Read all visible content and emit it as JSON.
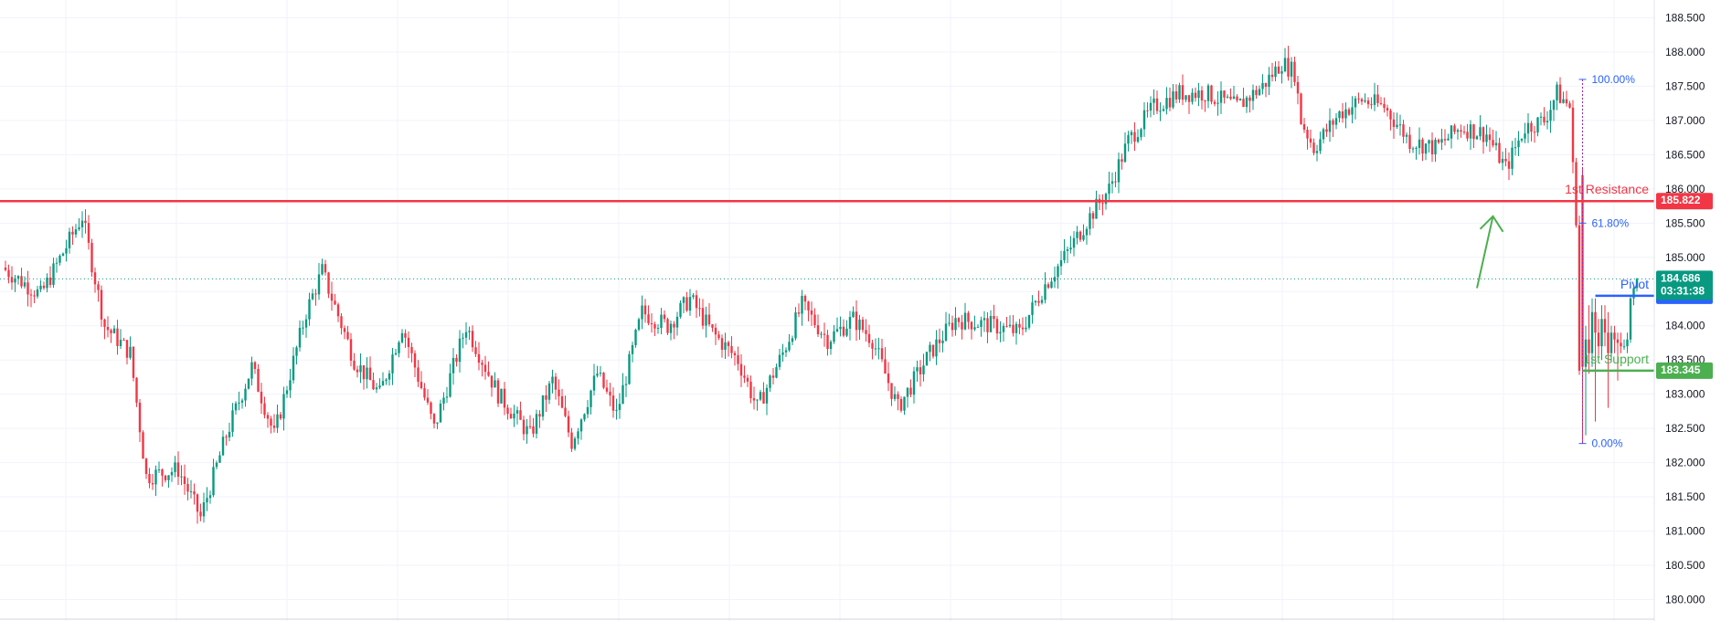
{
  "chart_data": {
    "type": "candlestick",
    "y_axis": {
      "ylim": [
        179.9,
        188.6
      ],
      "ticks": [
        "188.500",
        "188.000",
        "187.500",
        "187.000",
        "186.500",
        "186.000",
        "185.500",
        "185.000",
        "184.500",
        "184.000",
        "183.500",
        "183.000",
        "182.500",
        "182.000",
        "181.500",
        "181.000",
        "180.500",
        "180.000"
      ],
      "position": "right"
    },
    "grid": true,
    "levels": [
      {
        "name": "1st Resistance",
        "value": 185.822,
        "badge": "185.822",
        "color": "#f23645"
      },
      {
        "name": "Pivot",
        "value": 184.439,
        "badge": "184.439",
        "color": "#2962ff"
      },
      {
        "name": "1st Support",
        "value": 183.345,
        "badge": "183.345",
        "color": "#4caf50"
      }
    ],
    "last_price": {
      "value": 184.686,
      "badge": "184.686",
      "countdown": "03:31:38",
      "color": "#089981"
    },
    "fibonacci": [
      {
        "label": "100.00%",
        "value": 187.6
      },
      {
        "label": "61.80%",
        "value": 185.5
      },
      {
        "label": "0.00%",
        "value": 182.28
      }
    ],
    "path_points": [
      [
        0,
        184.85
      ],
      [
        12,
        184.45
      ],
      [
        25,
        185.6
      ],
      [
        32,
        184.0
      ],
      [
        40,
        183.6
      ],
      [
        45,
        181.8
      ],
      [
        55,
        181.9
      ],
      [
        62,
        181.2
      ],
      [
        70,
        182.4
      ],
      [
        78,
        183.4
      ],
      [
        85,
        182.4
      ],
      [
        95,
        184.2
      ],
      [
        100,
        184.8
      ],
      [
        110,
        183.5
      ],
      [
        118,
        183.0
      ],
      [
        125,
        184.0
      ],
      [
        135,
        182.5
      ],
      [
        145,
        184.0
      ],
      [
        155,
        183.0
      ],
      [
        165,
        182.4
      ],
      [
        172,
        183.2
      ],
      [
        178,
        182.3
      ],
      [
        186,
        183.3
      ],
      [
        192,
        182.7
      ],
      [
        200,
        184.2
      ],
      [
        208,
        184.0
      ],
      [
        215,
        184.4
      ],
      [
        222,
        183.9
      ],
      [
        230,
        183.5
      ],
      [
        236,
        182.8
      ],
      [
        244,
        183.6
      ],
      [
        250,
        184.3
      ],
      [
        258,
        183.8
      ],
      [
        266,
        184.1
      ],
      [
        272,
        183.8
      ],
      [
        280,
        182.8
      ],
      [
        290,
        183.6
      ],
      [
        298,
        184.1
      ],
      [
        310,
        184.0
      ],
      [
        318,
        183.9
      ],
      [
        326,
        184.6
      ],
      [
        332,
        185.0
      ],
      [
        340,
        185.6
      ],
      [
        346,
        186.0
      ],
      [
        352,
        186.7
      ],
      [
        360,
        187.2
      ],
      [
        368,
        187.4
      ],
      [
        376,
        187.4
      ],
      [
        386,
        187.2
      ],
      [
        394,
        187.5
      ],
      [
        400,
        187.85
      ],
      [
        404,
        187.7
      ],
      [
        406,
        187.0
      ],
      [
        410,
        186.6
      ],
      [
        418,
        187.1
      ],
      [
        425,
        187.3
      ],
      [
        432,
        187.2
      ],
      [
        440,
        186.7
      ],
      [
        448,
        186.6
      ],
      [
        456,
        186.9
      ],
      [
        464,
        186.8
      ],
      [
        470,
        186.3
      ],
      [
        476,
        186.9
      ],
      [
        482,
        187.0
      ],
      [
        486,
        187.4
      ],
      [
        490,
        187.2
      ],
      [
        491,
        186.3
      ],
      [
        492,
        185.6
      ],
      [
        493,
        183.35
      ],
      [
        496,
        183.9
      ],
      [
        500,
        184.4
      ],
      [
        505,
        183.5
      ],
      [
        510,
        184.0
      ],
      [
        515,
        183.7
      ],
      [
        519,
        183.75
      ],
      [
        523,
        184.2
      ],
      [
        526,
        184.6
      ],
      [
        528,
        184.7
      ]
    ],
    "candles": [
      {
        "i": 493,
        "o": 186.2,
        "h": 186.3,
        "l": 182.28,
        "c": 183.4
      },
      {
        "i": 494,
        "o": 183.4,
        "h": 184.0,
        "l": 182.4,
        "c": 183.8
      },
      {
        "i": 495,
        "o": 183.8,
        "h": 184.3,
        "l": 183.3,
        "c": 183.6
      },
      {
        "i": 496,
        "o": 183.6,
        "h": 184.4,
        "l": 183.4,
        "c": 184.2
      },
      {
        "i": 497,
        "o": 184.2,
        "h": 184.4,
        "l": 182.6,
        "c": 183.9
      },
      {
        "i": 498,
        "o": 183.9,
        "h": 184.1,
        "l": 183.5,
        "c": 183.7
      },
      {
        "i": 499,
        "o": 183.7,
        "h": 184.3,
        "l": 183.5,
        "c": 184.1
      },
      {
        "i": 500,
        "o": 184.1,
        "h": 184.3,
        "l": 183.7,
        "c": 183.9
      },
      {
        "i": 501,
        "o": 183.9,
        "h": 184.2,
        "l": 182.8,
        "c": 183.6
      },
      {
        "i": 502,
        "o": 183.6,
        "h": 184.0,
        "l": 183.5,
        "c": 183.9
      },
      {
        "i": 503,
        "o": 183.9,
        "h": 184.0,
        "l": 183.6,
        "c": 183.8
      },
      {
        "i": 504,
        "o": 183.8,
        "h": 183.9,
        "l": 183.2,
        "c": 183.75
      },
      {
        "i": 505,
        "o": 183.75,
        "h": 183.9,
        "l": 183.6,
        "c": 183.7
      },
      {
        "i": 506,
        "o": 183.7,
        "h": 183.8,
        "l": 183.65,
        "c": 183.7
      },
      {
        "i": 507,
        "o": 183.7,
        "h": 183.9,
        "l": 183.6,
        "c": 183.8
      },
      {
        "i": 508,
        "o": 183.8,
        "h": 184.45,
        "l": 183.75,
        "c": 184.4
      },
      {
        "i": 509,
        "o": 184.4,
        "h": 184.6,
        "l": 184.3,
        "c": 184.55
      },
      {
        "i": 510,
        "o": 184.55,
        "h": 184.7,
        "l": 184.5,
        "c": 184.686
      }
    ],
    "bullish_color": "#089981",
    "bearish_color": "#f23645",
    "projection_arrow_color": "#4caf50"
  }
}
